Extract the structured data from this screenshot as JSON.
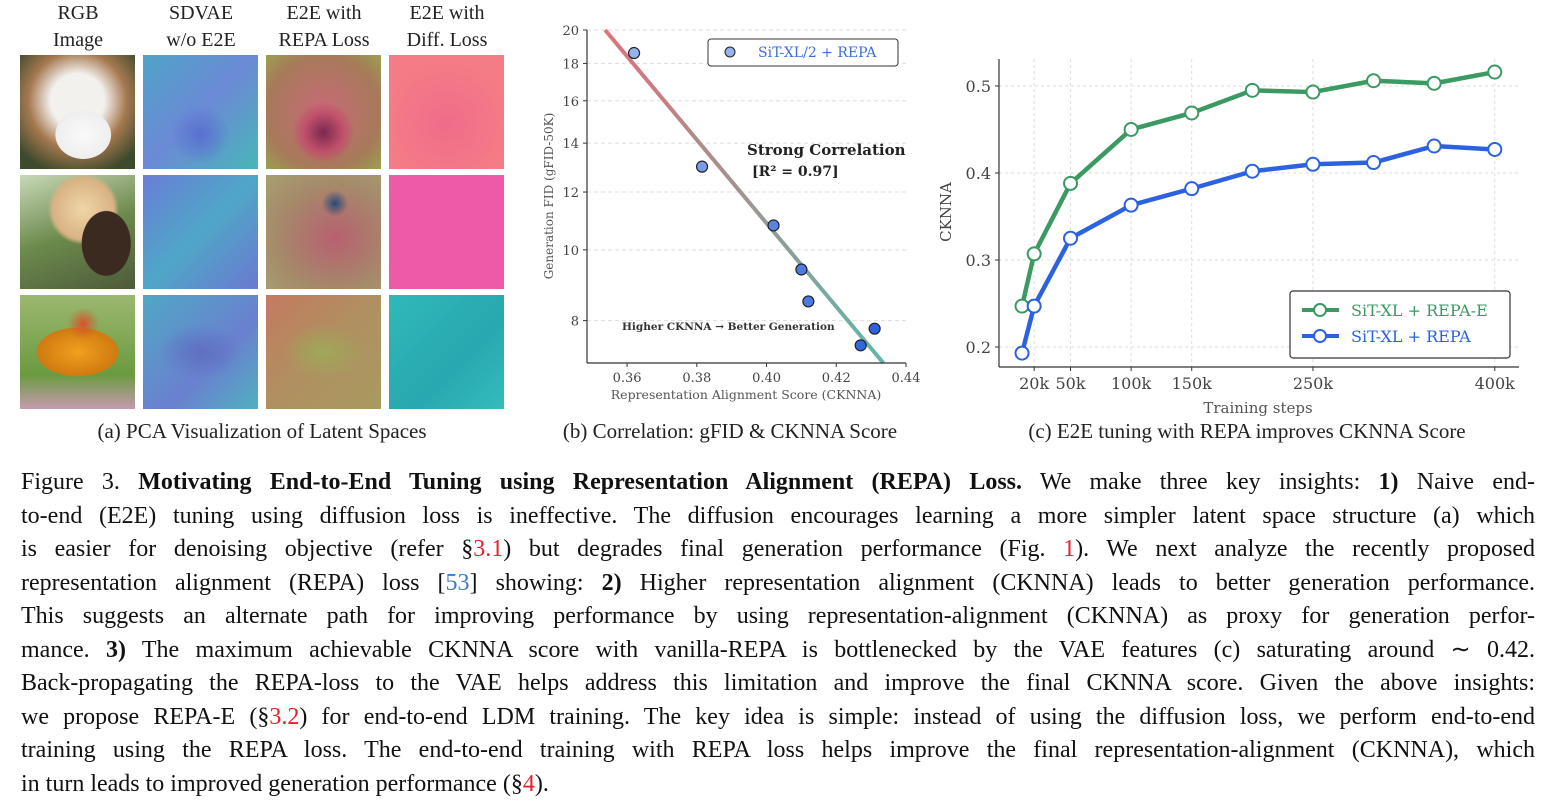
{
  "panel_a": {
    "headers": [
      {
        "line1": "RGB",
        "line2": "Image"
      },
      {
        "line1": "SDVAE",
        "line2": "w/o E2E"
      },
      {
        "line1": "E2E with",
        "line2": "REPA Loss"
      },
      {
        "line1": "E2E with",
        "line2": "Diff. Loss"
      }
    ],
    "rows": [
      "dog",
      "monkey",
      "butterfly"
    ],
    "caption": "(a) PCA Visualization of Latent Spaces"
  },
  "panel_b": {
    "caption": "(b) Correlation: gFID & CKNNA Score"
  },
  "panel_c": {
    "caption": "(c) E2E tuning with REPA improves CKNNA Score"
  },
  "chart_data": [
    {
      "type": "scatter",
      "ylabel": "Generation FID (gFID-50K)",
      "xlabel": "Representation Alignment Score (CKNNA)",
      "xlim": [
        0.3485,
        0.44
      ],
      "ylim": [
        7.0,
        20
      ],
      "yscale": "log",
      "xticks": [
        "0.36",
        "0.38",
        "0.40",
        "0.42",
        "0.44"
      ],
      "xtick_values": [
        0.36,
        0.38,
        0.4,
        0.42,
        0.44
      ],
      "yticks": [
        "8",
        "10",
        "12",
        "14",
        "16",
        "18",
        "20"
      ],
      "ytick_values": [
        8,
        10,
        12,
        14,
        16,
        18,
        20
      ],
      "grid": "horizontal dashed",
      "legend": "top-right",
      "series": [
        {
          "name": "SiT-XL/2 + REPA",
          "x": [
            0.362,
            0.3815,
            0.402,
            0.41,
            0.412,
            0.427,
            0.431
          ],
          "y": [
            18.6,
            13.0,
            10.8,
            9.4,
            8.5,
            7.4,
            7.8
          ]
        }
      ],
      "fit_line": {
        "x": [
          0.3537,
          0.4335
        ],
        "y": [
          20,
          7.0
        ]
      },
      "annotations": {
        "title": "Strong Correlation",
        "r2": "[R² = 0.97]",
        "note": "Higher CKNNA → Better Generation"
      },
      "colors": {
        "line_start": "#e0707a",
        "line_end": "#5fb8aa",
        "point_light": "#94b2ee",
        "point_dark": "#2d63dc",
        "legend_text": "#3b6fe0"
      }
    },
    {
      "type": "line",
      "ylabel": "CKNNA",
      "xlabel": "Training steps",
      "xlim": [
        -9000,
        420000
      ],
      "ylim": [
        0.177,
        0.531
      ],
      "xticks": [
        "20k",
        "50k",
        "100k",
        "150k",
        "250k",
        "400k"
      ],
      "xtick_values": [
        20000,
        50000,
        100000,
        150000,
        250000,
        400000
      ],
      "yticks": [
        "0.2",
        "0.3",
        "0.4",
        "0.5"
      ],
      "ytick_values": [
        0.2,
        0.3,
        0.4,
        0.5
      ],
      "grid": "both dashed",
      "legend": "bottom-right",
      "x": [
        10000,
        20000,
        50000,
        100000,
        150000,
        200000,
        250000,
        300000,
        350000,
        400000
      ],
      "series": [
        {
          "name": "SiT-XL + REPA-E",
          "color": "#3a9a62",
          "values": [
            0.247,
            0.307,
            0.388,
            0.45,
            0.469,
            0.495,
            0.493,
            0.506,
            0.503,
            0.516
          ]
        },
        {
          "name": "SiT-XL + REPA",
          "color": "#2c62e0",
          "values": [
            0.193,
            0.247,
            0.325,
            0.363,
            0.382,
            0.402,
            0.41,
            0.412,
            0.431,
            0.427
          ]
        }
      ]
    }
  ],
  "caption": {
    "lines": [
      [
        {
          "t": "Figure 3. ",
          "s": "n"
        },
        {
          "t": "Motivating End-to-End Tuning using Representation Alignment (REPA) Loss.",
          "s": "b"
        },
        {
          "t": " We make three key insights: ",
          "s": "n"
        },
        {
          "t": "1)",
          "s": "b"
        },
        {
          "t": " Naive end-",
          "s": "n"
        }
      ],
      [
        {
          "t": "to-end (E2E) tuning using diffusion loss is ineffective. The diffusion encourages learning a more simpler latent space structure (a) which",
          "s": "n"
        }
      ],
      [
        {
          "t": "is easier for denoising objective (refer §",
          "s": "n"
        },
        {
          "t": "3.1",
          "s": "r"
        },
        {
          "t": ") but degrades final generation performance (Fig. ",
          "s": "n"
        },
        {
          "t": "1",
          "s": "r"
        },
        {
          "t": "). We next analyze the recently proposed",
          "s": "n"
        }
      ],
      [
        {
          "t": "representation alignment (REPA) loss [",
          "s": "n"
        },
        {
          "t": "53",
          "s": "l"
        },
        {
          "t": "] showing: ",
          "s": "n"
        },
        {
          "t": "2)",
          "s": "b"
        },
        {
          "t": " Higher representation alignment (CKNNA) leads to better generation performance.",
          "s": "n"
        }
      ],
      [
        {
          "t": "This suggests an alternate path for improving performance by using representation-alignment (CKNNA) as proxy for generation perfor-",
          "s": "n"
        }
      ],
      [
        {
          "t": "mance. ",
          "s": "n"
        },
        {
          "t": "3)",
          "s": "b"
        },
        {
          "t": " The maximum achievable CKNNA score with vanilla-REPA is bottlenecked by the VAE features (c) saturating around ∼ 0.42.",
          "s": "n"
        }
      ],
      [
        {
          "t": "Back-propagating the REPA-loss to the VAE helps address this limitation and improve the final CKNNA score. Given the above insights:",
          "s": "n"
        }
      ],
      [
        {
          "t": "we propose REPA-E (§",
          "s": "n"
        },
        {
          "t": "3.2",
          "s": "r"
        },
        {
          "t": ") for end-to-end LDM training. The key idea is simple: instead of using the diffusion loss, we perform end-to-end",
          "s": "n"
        }
      ],
      [
        {
          "t": "training using the REPA loss. The end-to-end training with REPA loss helps improve the final representation-alignment (CKNNA), which",
          "s": "n"
        }
      ],
      [
        {
          "t": "in turn leads to improved generation performance (§",
          "s": "n"
        },
        {
          "t": "4",
          "s": "r"
        },
        {
          "t": ").",
          "s": "n"
        }
      ]
    ]
  }
}
